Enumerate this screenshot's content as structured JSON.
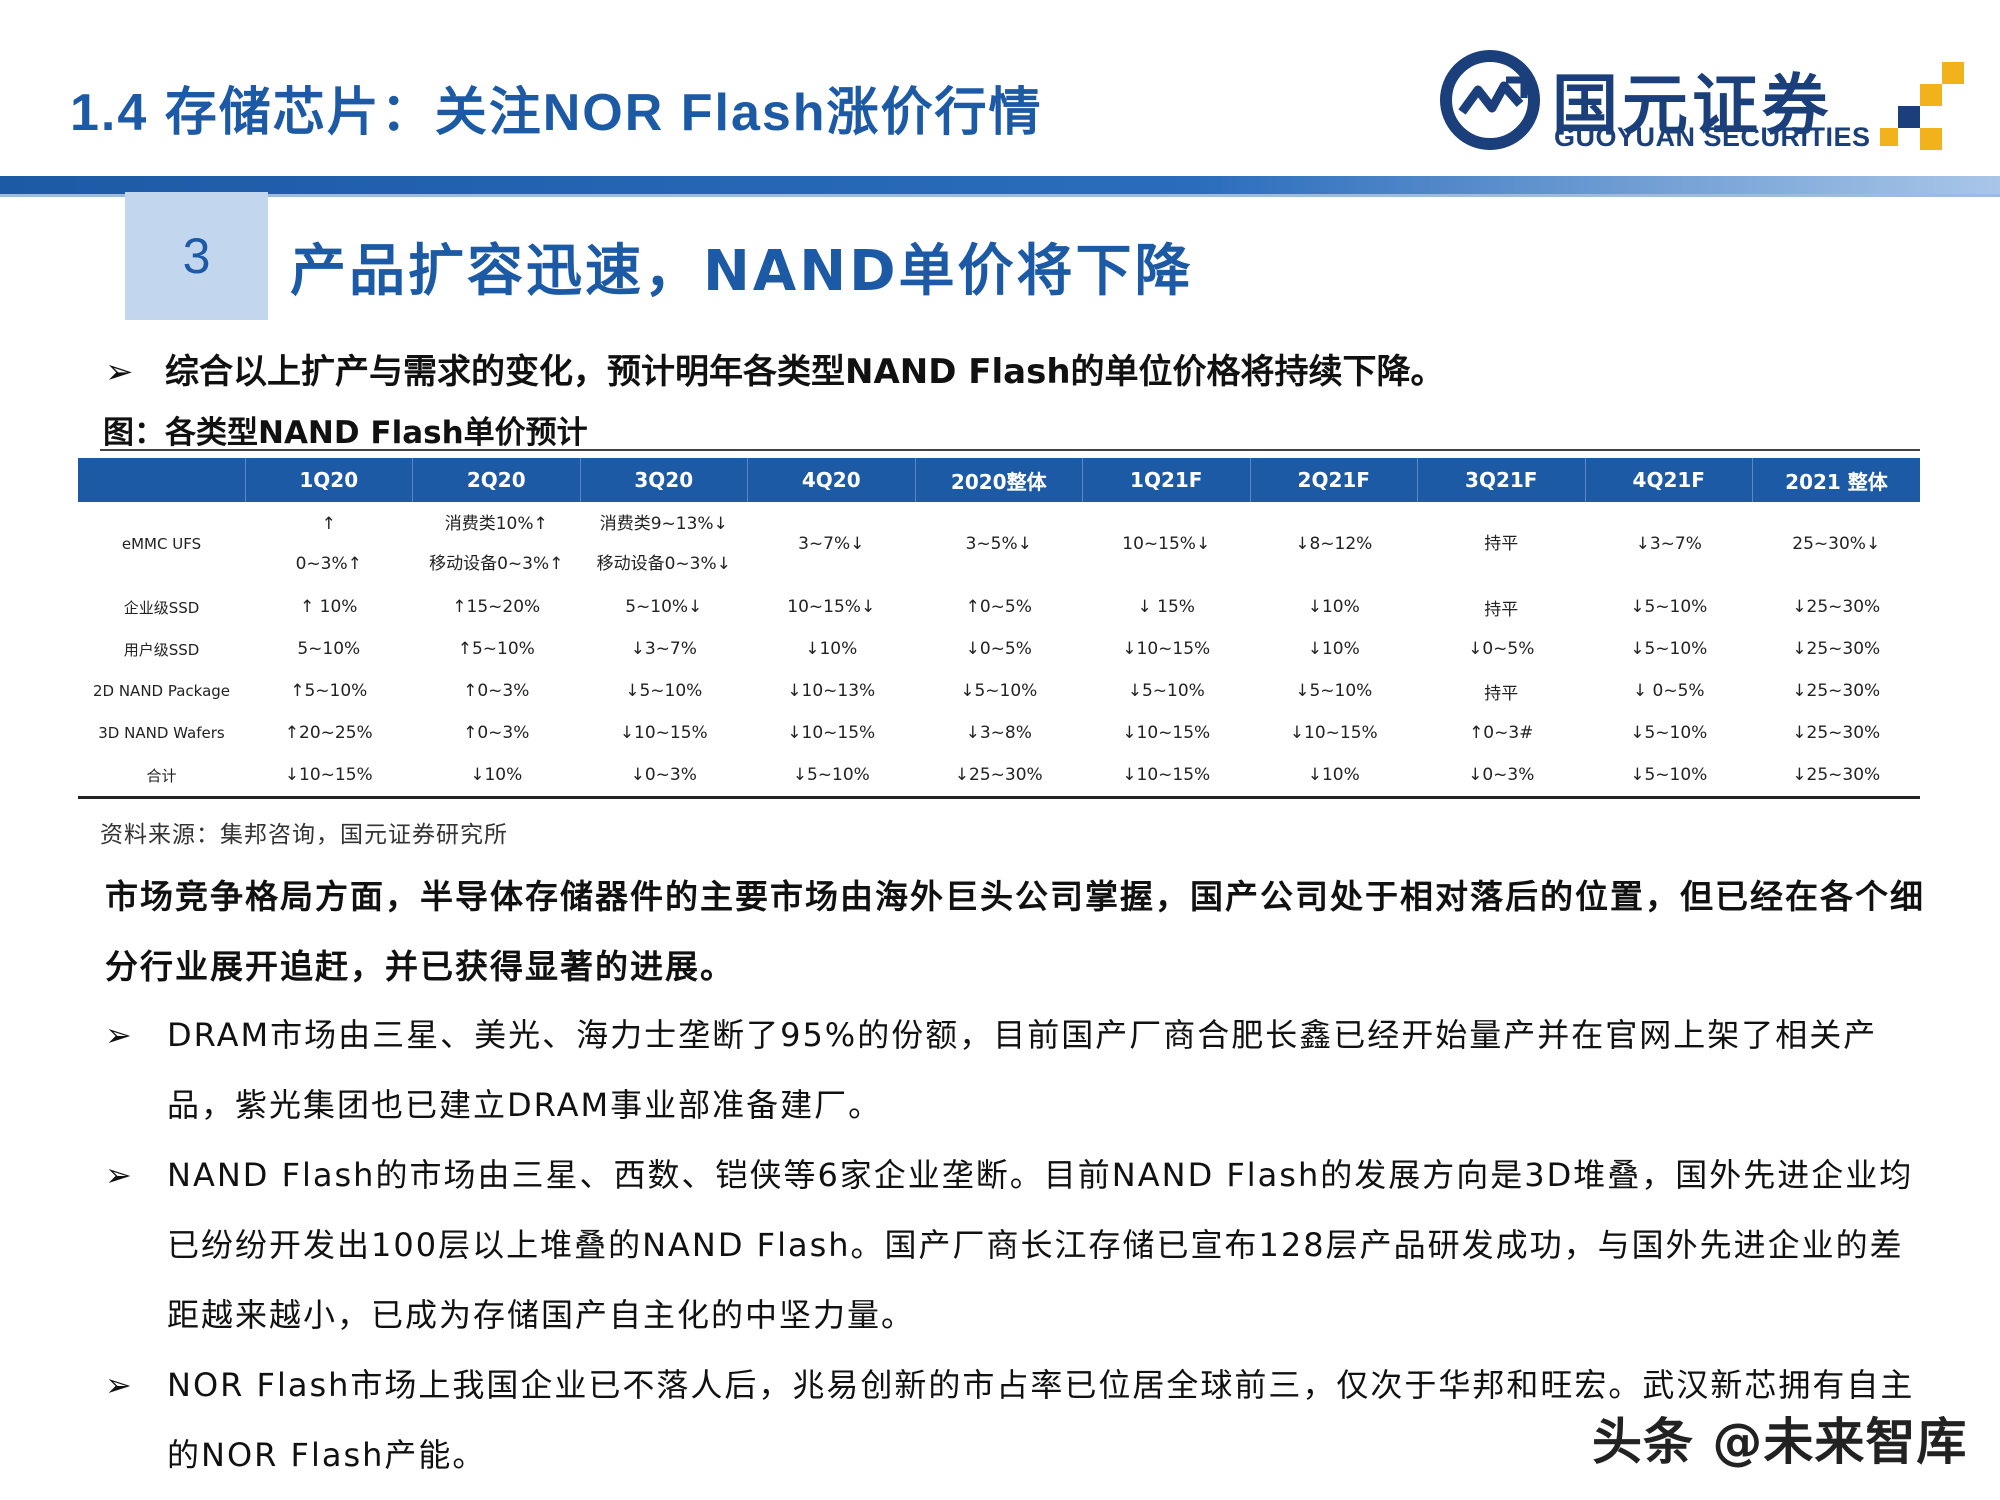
{
  "header": {
    "title": "1.4 存储芯片：关注NOR Flash涨价行情",
    "logo_cn": "国元证券",
    "logo_en": "GUOYUAN SECURITIES",
    "brand_color": "#1d5aa6"
  },
  "section": {
    "number": "3",
    "title": "产品扩容迅速，NAND单价将下降"
  },
  "intro_bullet": "综合以上扩产与需求的变化，预计明年各类型NAND Flash的单位价格将持续下降。",
  "figure_title": "图：各类型NAND Flash单价预计",
  "table": {
    "headers": [
      "",
      "1Q20",
      "2Q20",
      "3Q20",
      "4Q20",
      "2020整体",
      "1Q21F",
      "2Q21F",
      "3Q21F",
      "4Q21F",
      "2021 整体"
    ],
    "rows": [
      {
        "label": "eMMC UFS",
        "cells": [
          [
            "↑",
            "0~3%↑"
          ],
          [
            "消费类10%↑",
            "移动设备0~3%↑"
          ],
          [
            "消费类9~13%↓",
            "移动设备0~3%↓"
          ],
          [
            "3~7%↓"
          ],
          [
            "3~5%↓"
          ],
          [
            "10~15%↓"
          ],
          [
            "↓8~12%"
          ],
          [
            "持平"
          ],
          [
            "↓3~7%"
          ],
          [
            "25~30%↓"
          ]
        ]
      },
      {
        "label": "企业级SSD",
        "cells": [
          [
            "↑ 10%"
          ],
          [
            "↑15~20%"
          ],
          [
            "5~10%↓"
          ],
          [
            "10~15%↓"
          ],
          [
            "↑0~5%"
          ],
          [
            "↓ 15%"
          ],
          [
            "↓10%"
          ],
          [
            "持平"
          ],
          [
            "↓5~10%"
          ],
          [
            "↓25~30%"
          ]
        ]
      },
      {
        "label": "用户级SSD",
        "cells": [
          [
            "5~10%"
          ],
          [
            "↑5~10%"
          ],
          [
            "↓3~7%"
          ],
          [
            "↓10%"
          ],
          [
            "↓0~5%"
          ],
          [
            "↓10~15%"
          ],
          [
            "↓10%"
          ],
          [
            "↓0~5%"
          ],
          [
            "↓5~10%"
          ],
          [
            "↓25~30%"
          ]
        ]
      },
      {
        "label": "2D NAND Package",
        "cells": [
          [
            "↑5~10%"
          ],
          [
            "↑0~3%"
          ],
          [
            "↓5~10%"
          ],
          [
            "↓10~13%"
          ],
          [
            "↓5~10%"
          ],
          [
            "↓5~10%"
          ],
          [
            "↓5~10%"
          ],
          [
            "持平"
          ],
          [
            "↓ 0~5%"
          ],
          [
            "↓25~30%"
          ]
        ]
      },
      {
        "label": "3D NAND Wafers",
        "cells": [
          [
            "↑20~25%"
          ],
          [
            "↑0~3%"
          ],
          [
            "↓10~15%"
          ],
          [
            "↓10~15%"
          ],
          [
            "↓3~8%"
          ],
          [
            "↓10~15%"
          ],
          [
            "↓10~15%"
          ],
          [
            "↑0~3#"
          ],
          [
            "↓5~10%"
          ],
          [
            "↓25~30%"
          ]
        ]
      },
      {
        "label": "合计",
        "cells": [
          [
            "↓10~15%"
          ],
          [
            "↓10%"
          ],
          [
            "↓0~3%"
          ],
          [
            "↓5~10%"
          ],
          [
            "↓25~30%"
          ],
          [
            "↓10~15%"
          ],
          [
            "↓10%"
          ],
          [
            "↓0~3%"
          ],
          [
            "↓5~10%"
          ],
          [
            "↓25~30%"
          ]
        ]
      }
    ]
  },
  "source": "资料来源：集邦咨询，国元证券研究所",
  "paragraph": "市场竞争格局方面，半导体存储器件的主要市场由海外巨头公司掌握，国产公司处于相对落后的位置，但已经在各个细分行业展开追赶，并已获得显著的进展。",
  "bullets": [
    "DRAM市场由三星、美光、海力士垄断了95%的份额，目前国产厂商合肥长鑫已经开始量产并在官网上架了相关产品，紫光集团也已建立DRAM事业部准备建厂。",
    "NAND Flash的市场由三星、西数、铠侠等6家企业垄断。目前NAND Flash的发展方向是3D堆叠，国外先进企业均已纷纷开发出100层以上堆叠的NAND Flash。国产厂商长江存储已宣布128层产品研发成功，与国外先进企业的差距越来越小，已成为存储国产自主化的中坚力量。",
    "NOR Flash市场上我国企业已不落人后，兆易创新的市占率已位居全球前三，仅次于华邦和旺宏。武汉新芯拥有自主的NOR Flash产能。"
  ],
  "bullet_marker": "➢",
  "watermark": "头条 @未来智库"
}
